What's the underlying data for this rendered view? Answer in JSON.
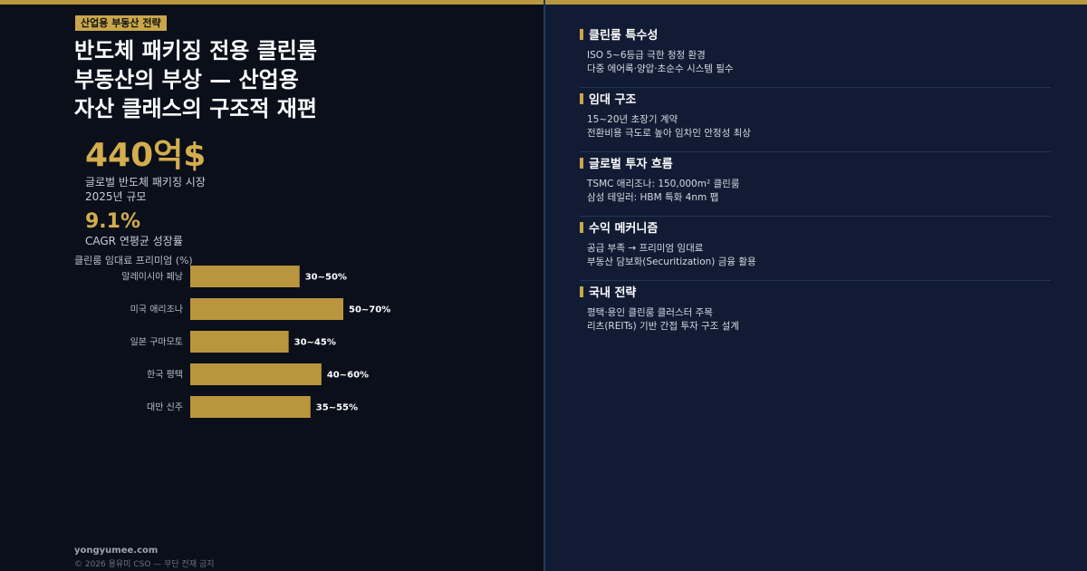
{
  "badge": "산업용 부동산 전략",
  "headline": [
    "반도체 패키징 전용 클린룸",
    "부동산의 부상 — 산업용",
    "자산 클래스의 구조적 재편"
  ],
  "stats": {
    "market_value": "440억$",
    "market_label_1": "글로벌 반도체 패키징 시장",
    "market_label_2": "2025년 규모",
    "cagr_value": "9.1%",
    "cagr_label": "CAGR 연평균 성장률"
  },
  "chart_data": {
    "type": "bar",
    "orientation": "horizontal",
    "title": "클린룸 임대료 프리미엄 (%)",
    "categories": [
      "말레이시아 페낭",
      "미국 애리조나",
      "일본 구마모토",
      "한국 평택",
      "대만 신주"
    ],
    "ranges": [
      [
        30,
        50
      ],
      [
        50,
        70
      ],
      [
        30,
        45
      ],
      [
        40,
        60
      ],
      [
        35,
        55
      ]
    ],
    "values": [
      50,
      70,
      45,
      60,
      55
    ],
    "labels": [
      "30~50%",
      "50~70%",
      "30~45%",
      "40~60%",
      "35~55%"
    ],
    "xlim": [
      0,
      70
    ],
    "grid": false,
    "bar_color": "#b9963d"
  },
  "sections": [
    {
      "title": "클린룸 특수성",
      "lines": [
        "ISO 5~6등급 극한 청정 환경",
        "다중 에어록·양압·초순수 시스템 필수"
      ]
    },
    {
      "title": "임대 구조",
      "lines": [
        "15~20년 초장기 계약",
        "전환비용 극도로 높아 임차인 안정성 최상"
      ]
    },
    {
      "title": "글로벌 투자 흐름",
      "lines": [
        "TSMC 애리조나: 150,000m² 클린룸",
        "삼성 테일러: HBM 특화 4nm 팹"
      ]
    },
    {
      "title": "수익 메커니즘",
      "lines": [
        "공급 부족 → 프리미엄 임대료",
        "부동산 담보화(Securitization) 금융 활용"
      ]
    },
    {
      "title": "국내 전략",
      "lines": [
        "평택·용인 클린룸 클러스터 주목",
        "리츠(REITs) 기반 간접 투자 구조 설계"
      ]
    }
  ],
  "footer": {
    "site": "yongyumee.com",
    "copyright": "© 2026 용유미 CSO — 무단 전재 금지"
  },
  "colors": {
    "accent": "#c9a64a",
    "left_bg": "#0a0f1a",
    "right_bg": "#111b33"
  }
}
